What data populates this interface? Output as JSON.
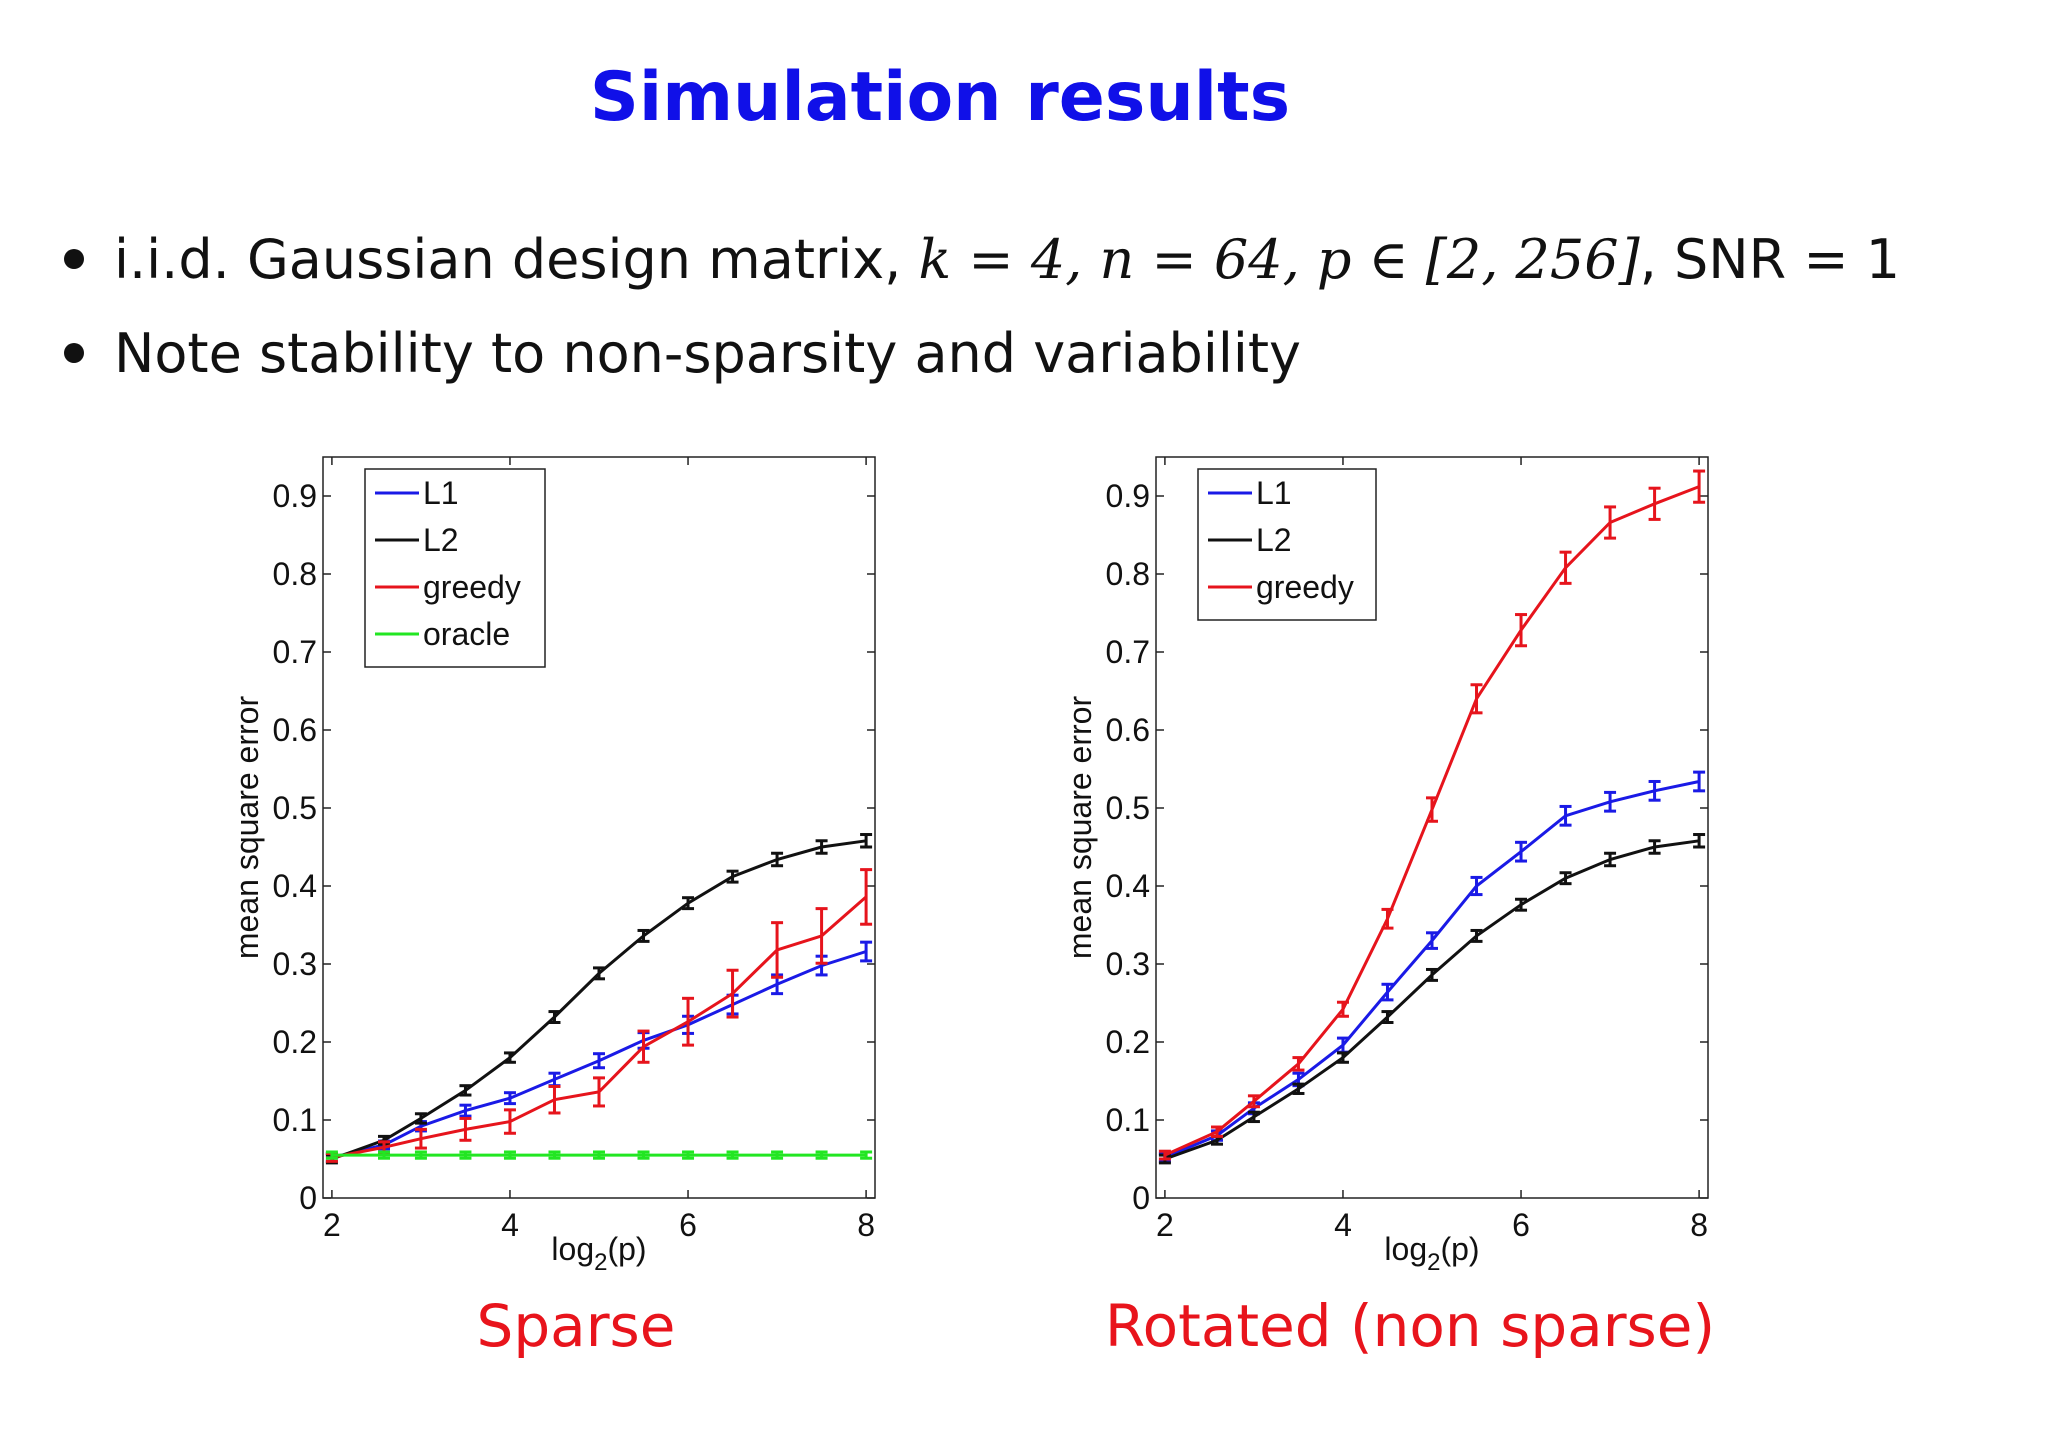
{
  "slide": {
    "title": "Simulation results",
    "bullets": [
      {
        "prefix": "i.i.d. Gaussian design matrix, ",
        "math": "k = 4,  n = 64,  p ∈ [2, 256]",
        "suffix": ", SNR = 1"
      },
      {
        "text": "Note stability to non-sparsity and variability"
      }
    ]
  },
  "chart_data": [
    {
      "type": "line",
      "caption": "Sparse",
      "xlabel": "log2(p)",
      "ylabel": "mean square error",
      "xlim": [
        1.9,
        8.1
      ],
      "ylim": [
        0,
        0.95
      ],
      "xticks": [
        2,
        4,
        6,
        8
      ],
      "yticks": [
        0,
        0.1,
        0.2,
        0.3,
        0.4,
        0.5,
        0.6,
        0.7,
        0.8,
        0.9
      ],
      "grid": false,
      "legend": "top-left",
      "x": [
        2,
        2.585,
        3,
        3.5,
        4,
        4.5,
        5,
        5.5,
        6,
        6.5,
        7,
        7.5,
        8
      ],
      "series": [
        {
          "name": "L1",
          "color": "#1a1ae6",
          "values": [
            0.052,
            0.068,
            0.092,
            0.112,
            0.128,
            0.152,
            0.176,
            0.202,
            0.222,
            0.248,
            0.274,
            0.298,
            0.316
          ],
          "errors": [
            0.005,
            0.005,
            0.006,
            0.007,
            0.007,
            0.008,
            0.009,
            0.01,
            0.011,
            0.012,
            0.012,
            0.012,
            0.012
          ]
        },
        {
          "name": "L2",
          "color": "#111111",
          "values": [
            0.05,
            0.074,
            0.102,
            0.138,
            0.18,
            0.232,
            0.288,
            0.336,
            0.378,
            0.412,
            0.434,
            0.45,
            0.458
          ],
          "errors": [
            0.005,
            0.005,
            0.006,
            0.006,
            0.006,
            0.007,
            0.007,
            0.007,
            0.007,
            0.007,
            0.008,
            0.008,
            0.008
          ]
        },
        {
          "name": "greedy",
          "color": "#e6141c",
          "values": [
            0.052,
            0.065,
            0.076,
            0.088,
            0.098,
            0.126,
            0.136,
            0.194,
            0.226,
            0.262,
            0.318,
            0.336,
            0.386
          ],
          "errors": [
            0.005,
            0.007,
            0.012,
            0.014,
            0.015,
            0.017,
            0.018,
            0.02,
            0.03,
            0.03,
            0.035,
            0.035,
            0.035
          ]
        },
        {
          "name": "oracle",
          "color": "#22e622",
          "values": [
            0.055,
            0.055,
            0.055,
            0.055,
            0.055,
            0.055,
            0.055,
            0.055,
            0.055,
            0.055,
            0.055,
            0.055,
            0.055
          ],
          "errors": [
            0.004,
            0.004,
            0.004,
            0.004,
            0.004,
            0.004,
            0.004,
            0.004,
            0.004,
            0.004,
            0.004,
            0.004,
            0.004
          ]
        }
      ]
    },
    {
      "type": "line",
      "caption": "Rotated (non sparse)",
      "xlabel": "log2(p)",
      "ylabel": "mean square error",
      "xlim": [
        1.9,
        8.1
      ],
      "ylim": [
        0,
        0.95
      ],
      "xticks": [
        2,
        4,
        6,
        8
      ],
      "yticks": [
        0,
        0.1,
        0.2,
        0.3,
        0.4,
        0.5,
        0.6,
        0.7,
        0.8,
        0.9
      ],
      "grid": false,
      "legend": "top-left",
      "x": [
        2,
        2.585,
        3,
        3.5,
        4,
        4.5,
        5,
        5.5,
        6,
        6.5,
        7,
        7.5,
        8
      ],
      "series": [
        {
          "name": "L1",
          "color": "#1a1ae6",
          "values": [
            0.052,
            0.08,
            0.115,
            0.152,
            0.196,
            0.264,
            0.33,
            0.4,
            0.444,
            0.49,
            0.508,
            0.522,
            0.534
          ],
          "errors": [
            0.005,
            0.006,
            0.007,
            0.008,
            0.009,
            0.01,
            0.01,
            0.011,
            0.012,
            0.012,
            0.012,
            0.012,
            0.012
          ]
        },
        {
          "name": "L2",
          "color": "#111111",
          "values": [
            0.05,
            0.074,
            0.104,
            0.14,
            0.18,
            0.232,
            0.286,
            0.336,
            0.376,
            0.41,
            0.434,
            0.45,
            0.458
          ],
          "errors": [
            0.005,
            0.005,
            0.006,
            0.006,
            0.006,
            0.007,
            0.007,
            0.007,
            0.007,
            0.007,
            0.008,
            0.008,
            0.008
          ]
        },
        {
          "name": "greedy",
          "color": "#e6141c",
          "values": [
            0.055,
            0.085,
            0.124,
            0.172,
            0.242,
            0.358,
            0.498,
            0.64,
            0.728,
            0.808,
            0.866,
            0.89,
            0.912
          ],
          "errors": [
            0.005,
            0.006,
            0.007,
            0.008,
            0.009,
            0.012,
            0.015,
            0.018,
            0.02,
            0.02,
            0.02,
            0.02,
            0.02
          ]
        }
      ]
    }
  ]
}
